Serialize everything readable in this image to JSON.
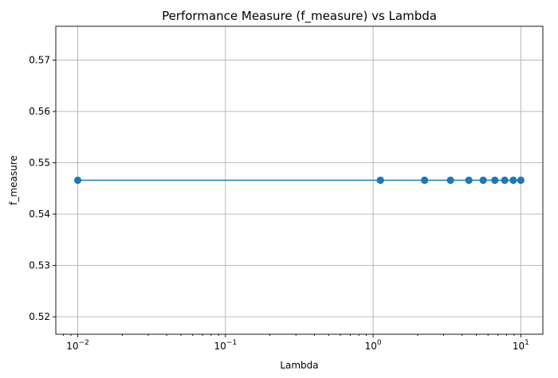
{
  "chart_data": {
    "type": "line",
    "title": "Performance Measure (f_measure) vs Lambda",
    "xlabel": "Lambda",
    "ylabel": "f_measure",
    "x_scale": "log",
    "xlim": [
      0.0071,
      14.1
    ],
    "ylim": [
      0.5166,
      0.5766
    ],
    "grid": true,
    "legend": "none",
    "x_ticks": [
      {
        "value": 0.01,
        "base": "10",
        "exp": "−2"
      },
      {
        "value": 0.1,
        "base": "10",
        "exp": "−1"
      },
      {
        "value": 1,
        "base": "10",
        "exp": "0"
      },
      {
        "value": 10,
        "base": "10",
        "exp": "1"
      }
    ],
    "y_ticks": [
      {
        "value": 0.52,
        "label": "0.52"
      },
      {
        "value": 0.53,
        "label": "0.53"
      },
      {
        "value": 0.54,
        "label": "0.54"
      },
      {
        "value": 0.55,
        "label": "0.55"
      },
      {
        "value": 0.56,
        "label": "0.56"
      },
      {
        "value": 0.57,
        "label": "0.57"
      }
    ],
    "series": [
      {
        "color": "#1f77b4",
        "marker": "circle",
        "x": [
          0.01,
          1.12,
          2.23,
          3.34,
          4.45,
          5.56,
          6.67,
          7.78,
          8.89,
          10.0
        ],
        "y": [
          0.5466,
          0.5466,
          0.5466,
          0.5466,
          0.5466,
          0.5466,
          0.5466,
          0.5466,
          0.5466,
          0.5466
        ]
      }
    ]
  }
}
